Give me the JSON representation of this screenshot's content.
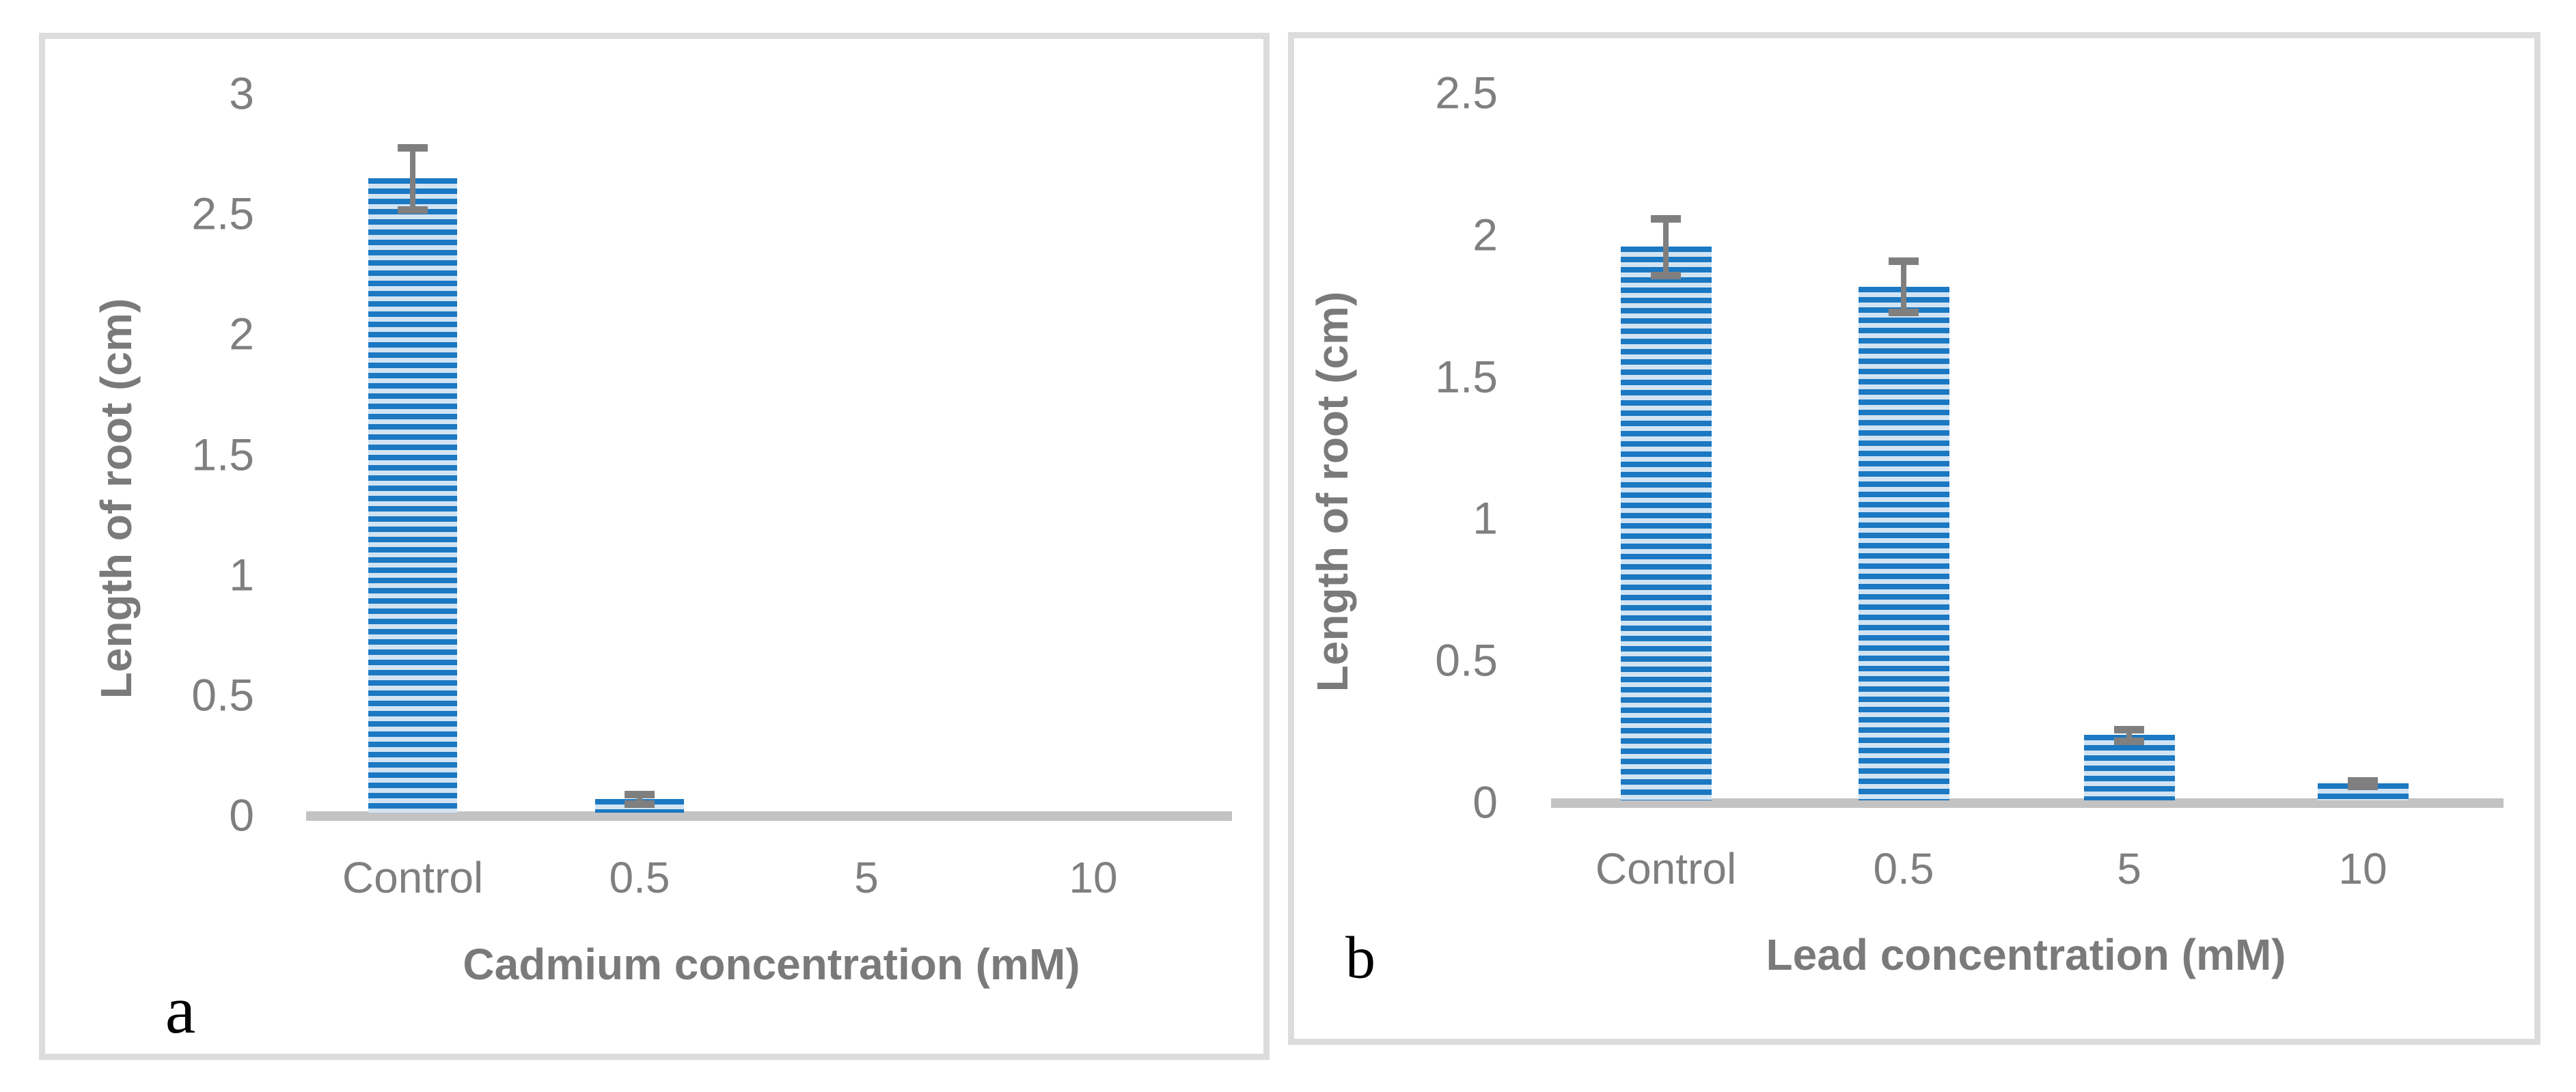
{
  "figure": {
    "description": "Two-panel bar chart figure: effect of heavy metal concentration on root length",
    "background": "#ffffff",
    "panels": [
      {
        "label": "a"
      },
      {
        "label": "b"
      }
    ]
  },
  "colors": {
    "bar_blue": "#1b78c2",
    "bar_stripe_light": "#d2e4f3",
    "axis_line": "#c3c3c3",
    "error_bar": "#7f7f7f",
    "tick_text": "#7f7f7f",
    "title_text": "#7a7a7a",
    "panel_border": "#dcdcdc",
    "panel_letter": "#000000"
  },
  "chart_data": [
    {
      "panel": "a",
      "type": "bar",
      "categories": [
        "Control",
        "0.5",
        "5",
        "10"
      ],
      "values": [
        2.65,
        0.07,
        0,
        0
      ],
      "errors": [
        0.13,
        0.02,
        0,
        0
      ],
      "title": "",
      "xlabel": "Cadmium concentration (mM)",
      "ylabel": "Length of root (cm)",
      "ylim": [
        0,
        3
      ],
      "ytick_labels": [
        "0",
        "0.5",
        "1",
        "1.5",
        "2",
        "2.5",
        "3"
      ],
      "ytick_values": [
        0,
        0.5,
        1,
        1.5,
        2,
        2.5,
        3
      ],
      "grid": false,
      "legend": "none",
      "bar_fill": "horizontal-stripe-pattern"
    },
    {
      "panel": "b",
      "type": "bar",
      "categories": [
        "Control",
        "0.5",
        "5",
        "10"
      ],
      "values": [
        1.96,
        1.82,
        0.24,
        0.07
      ],
      "errors": [
        0.1,
        0.09,
        0.02,
        0.01
      ],
      "title": "",
      "xlabel": "Lead concentration (mM)",
      "ylabel": "Length of root (cm)",
      "ylim": [
        0,
        2.5
      ],
      "ytick_labels": [
        "0",
        "0.5",
        "1",
        "1.5",
        "2",
        "2.5"
      ],
      "ytick_values": [
        0,
        0.5,
        1,
        1.5,
        2,
        2.5
      ],
      "grid": false,
      "legend": "none",
      "bar_fill": "horizontal-stripe-pattern"
    }
  ]
}
